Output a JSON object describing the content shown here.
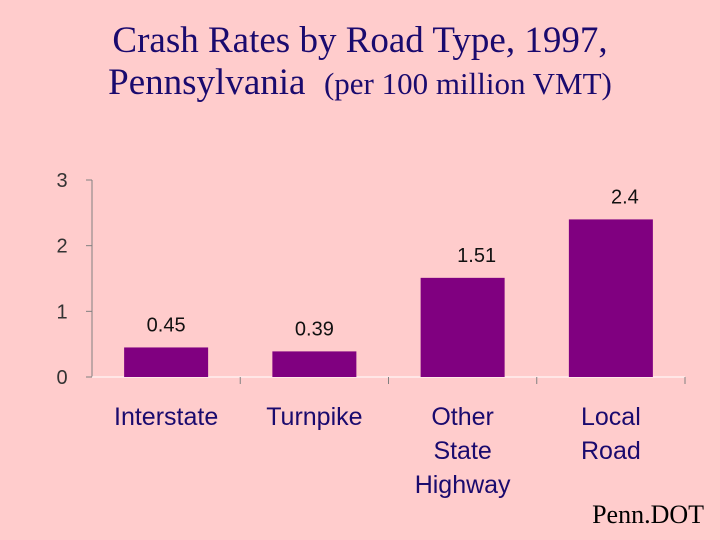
{
  "title": {
    "line1": "Crash Rates by Road Type, 1997,",
    "line2": "Pennsylvania",
    "subtitle": "(per 100 million VMT)"
  },
  "source": "Penn.DOT",
  "colors": {
    "background": "#ffcccc",
    "bar": "#800080",
    "title": "#1a0a6e",
    "axis": "#808080"
  },
  "chart_data": {
    "type": "bar",
    "title": "Crash Rates by Road Type, 1997, Pennsylvania (per 100 million VMT)",
    "categories": [
      "Interstate",
      "Turnpike",
      "Other State Highway",
      "Local Road"
    ],
    "category_lines": [
      [
        "Interstate"
      ],
      [
        "Turnpike"
      ],
      [
        "Other",
        "State",
        "Highway"
      ],
      [
        "Local",
        "Road"
      ]
    ],
    "values": [
      0.45,
      0.39,
      1.51,
      2.4
    ],
    "value_labels": [
      "0.45",
      "0.39",
      "1.51",
      "2.4"
    ],
    "ylim": [
      0,
      3
    ],
    "yticks": [
      0,
      1,
      2,
      3
    ],
    "ytick_labels": [
      "0",
      "1",
      "2",
      "3"
    ],
    "grid": false,
    "legend": "none"
  }
}
